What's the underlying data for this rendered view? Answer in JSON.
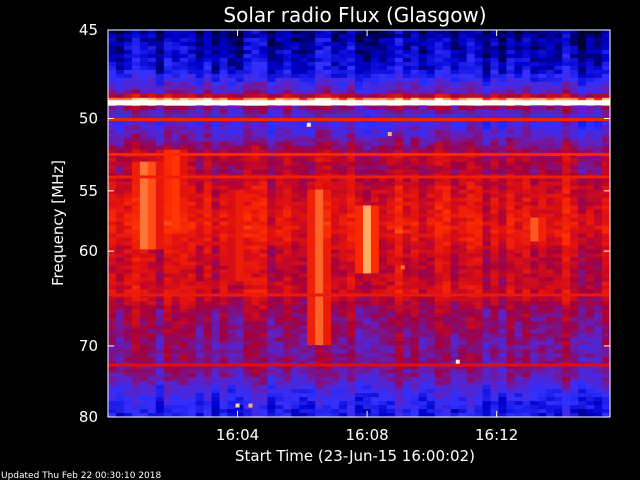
{
  "chart_data": {
    "type": "heatmap",
    "title": "Solar radio Flux (Glasgow)",
    "xlabel": "Start Time (23-Jun-15 16:00:02)",
    "ylabel": "Frequency [MHz]",
    "updated_text": "Updated Thu Feb 22 00:30:10 2018",
    "x_unit": "minutes after 16:00:02",
    "xlim": [
      0,
      15.5
    ],
    "x_ticks": [
      {
        "value": 4,
        "label": "16:04"
      },
      {
        "value": 8,
        "label": "16:08"
      },
      {
        "value": 12,
        "label": "16:12"
      }
    ],
    "y_scale": "reciprocal",
    "ylim": [
      45,
      80
    ],
    "y_ticks": [
      {
        "value": 45,
        "label": "45"
      },
      {
        "value": 50,
        "label": "50"
      },
      {
        "value": 55,
        "label": "55"
      },
      {
        "value": 60,
        "label": "60"
      },
      {
        "value": 70,
        "label": "70"
      },
      {
        "value": 80,
        "label": "80"
      }
    ],
    "colormap": [
      "#000033",
      "#0000cc",
      "#3030ff",
      "#6020c0",
      "#a00040",
      "#e01010",
      "#ff3000",
      "#ffd080",
      "#ffffff"
    ],
    "frequency_profile": [
      {
        "freq": 45.0,
        "level": 0.05
      },
      {
        "freq": 45.5,
        "level": 0.1
      },
      {
        "freq": 47.0,
        "level": 0.15
      },
      {
        "freq": 48.5,
        "level": 0.4
      },
      {
        "freq": 49.0,
        "level": 1.0
      },
      {
        "freq": 49.3,
        "level": 0.45
      },
      {
        "freq": 50.0,
        "level": 0.3
      },
      {
        "freq": 51.0,
        "level": 0.35
      },
      {
        "freq": 52.5,
        "level": 0.55
      },
      {
        "freq": 53.5,
        "level": 0.5
      },
      {
        "freq": 54.5,
        "level": 0.58
      },
      {
        "freq": 56.0,
        "level": 0.62
      },
      {
        "freq": 58.0,
        "level": 0.66
      },
      {
        "freq": 60.0,
        "level": 0.58
      },
      {
        "freq": 62.0,
        "level": 0.56
      },
      {
        "freq": 64.0,
        "level": 0.6
      },
      {
        "freq": 66.0,
        "level": 0.48
      },
      {
        "freq": 68.0,
        "level": 0.46
      },
      {
        "freq": 70.0,
        "level": 0.42
      },
      {
        "freq": 72.0,
        "level": 0.44
      },
      {
        "freq": 74.0,
        "level": 0.4
      },
      {
        "freq": 76.0,
        "level": 0.28
      },
      {
        "freq": 78.0,
        "level": 0.22
      },
      {
        "freq": 80.0,
        "level": 0.18
      }
    ],
    "horizontal_bands": [
      {
        "freq": 49.0,
        "level": 1.0
      },
      {
        "freq": 50.1,
        "level": 0.7
      },
      {
        "freq": 52.4,
        "level": 0.72
      },
      {
        "freq": 54.0,
        "level": 0.68
      },
      {
        "freq": 64.3,
        "level": 0.66
      },
      {
        "freq": 72.5,
        "level": 0.62
      }
    ],
    "time_bursts": [
      {
        "time": 1.2,
        "freq_range": [
          53,
          60
        ],
        "level": 0.85
      },
      {
        "time": 2.0,
        "freq_range": [
          52,
          58
        ],
        "level": 0.8
      },
      {
        "time": 4.0,
        "freq_range": [
          55,
          63
        ],
        "level": 0.7
      },
      {
        "time": 6.5,
        "freq_range": [
          55,
          70
        ],
        "level": 0.8
      },
      {
        "time": 8.0,
        "freq_range": [
          56,
          62
        ],
        "level": 0.85
      },
      {
        "time": 13.2,
        "freq_range": [
          57,
          59
        ],
        "level": 0.8
      }
    ],
    "point_features": [
      {
        "time": 6.2,
        "freq": 50.4,
        "level": 0.95
      },
      {
        "time": 8.7,
        "freq": 51.0,
        "level": 0.85
      },
      {
        "time": 9.1,
        "freq": 61.5,
        "level": 0.8
      },
      {
        "time": 10.8,
        "freq": 72.0,
        "level": 0.95
      },
      {
        "time": 4.0,
        "freq": 78.2,
        "level": 0.9
      },
      {
        "time": 4.4,
        "freq": 78.2,
        "level": 0.85
      }
    ]
  }
}
